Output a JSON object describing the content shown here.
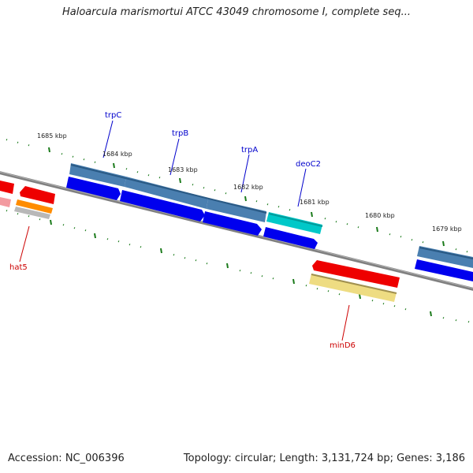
{
  "title": "Haloarcula marismortui ATCC 43049 chromosome I, complete seq...",
  "footer": {
    "accession": "Accession: NC_006396",
    "summary": "Topology: circular; Length: 3,131,724 bp; Genes: 3,186"
  },
  "scale_labels": [
    "1685 kbp",
    "1684 kbp",
    "1683 kbp",
    "1682 kbp",
    "1681 kbp",
    "1680 kbp",
    "1679 kbp"
  ],
  "gene_labels": {
    "trpC": "trpC",
    "trpB": "trpB",
    "trpA": "trpA",
    "deoC2": "deoC2",
    "hat5": "hat5",
    "minD6": "minD6"
  },
  "colors": {
    "backbone": "#808080",
    "cds_blue": "#0000ee",
    "gene_steelblue": "#4a7fb0",
    "cyan": "#00c8c8",
    "red": "#ee0000",
    "orange": "#ff8c00",
    "khaki": "#eedc82",
    "tick_green": "#1a7a1a",
    "label_blue": "#0000cc",
    "label_red": "#cc0000"
  }
}
